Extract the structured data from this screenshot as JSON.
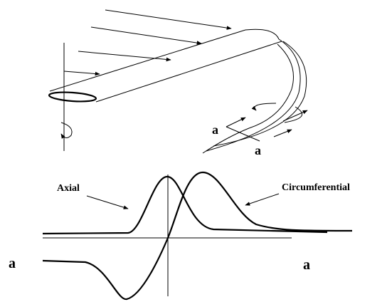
{
  "labels": [
    "a",
    "a",
    "Axial",
    "Circumferential",
    "a",
    "a"
  ]
}
